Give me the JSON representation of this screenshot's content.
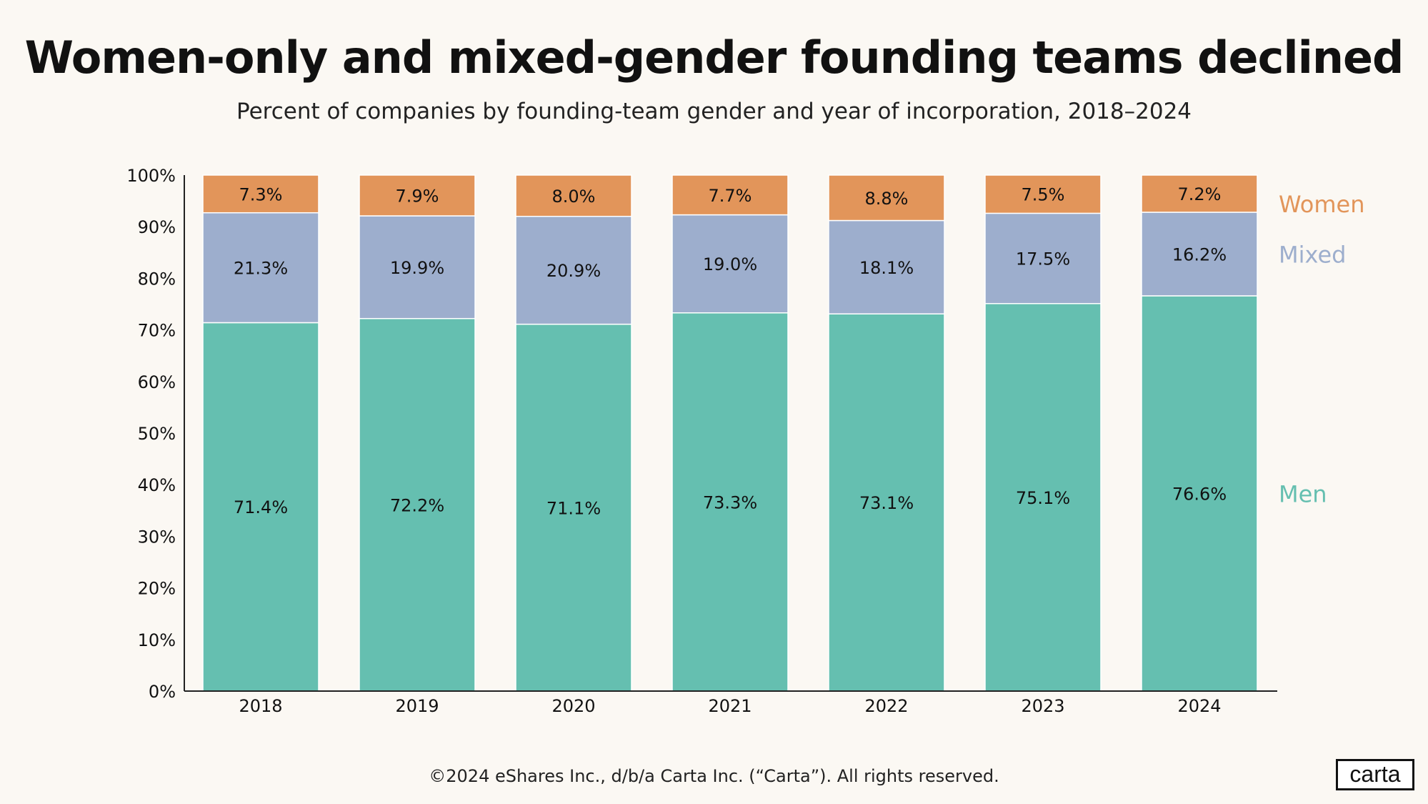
{
  "header": {
    "title": "Women-only and mixed-gender founding teams declined",
    "subtitle": "Percent of companies by founding-team gender and year of incorporation, 2018–2024"
  },
  "footer": {
    "copyright": "©2024 eShares Inc., d/b/a Carta Inc. (“Carta”). All rights reserved.",
    "logo_text": "carta"
  },
  "chart_data": {
    "type": "bar",
    "stacked": true,
    "categories": [
      "2018",
      "2019",
      "2020",
      "2021",
      "2022",
      "2023",
      "2024"
    ],
    "series": [
      {
        "name": "Men",
        "color": "#65bfb0",
        "values": [
          71.4,
          72.2,
          71.1,
          73.3,
          73.1,
          75.1,
          76.6
        ],
        "labels": [
          "71.4%",
          "72.2%",
          "71.1%",
          "73.3%",
          "73.1%",
          "75.1%",
          "76.6%"
        ]
      },
      {
        "name": "Mixed",
        "color": "#9daecd",
        "values": [
          21.3,
          19.9,
          20.9,
          19.0,
          18.1,
          17.5,
          16.2
        ],
        "labels": [
          "21.3%",
          "19.9%",
          "20.9%",
          "19.0%",
          "18.1%",
          "17.5%",
          "16.2%"
        ]
      },
      {
        "name": "Women",
        "color": "#e2955a",
        "values": [
          7.3,
          7.9,
          8.0,
          7.7,
          8.8,
          7.5,
          7.2
        ],
        "labels": [
          "7.3%",
          "7.9%",
          "8.0%",
          "7.7%",
          "8.8%",
          "7.5%",
          "7.2%"
        ]
      }
    ],
    "ylim": [
      0,
      100
    ],
    "yticks": [
      0,
      10,
      20,
      30,
      40,
      50,
      60,
      70,
      80,
      90,
      100
    ],
    "ytick_labels": [
      "0%",
      "10%",
      "20%",
      "30%",
      "40%",
      "50%",
      "60%",
      "70%",
      "80%",
      "90%",
      "100%"
    ],
    "legend": "right",
    "grid": false
  }
}
